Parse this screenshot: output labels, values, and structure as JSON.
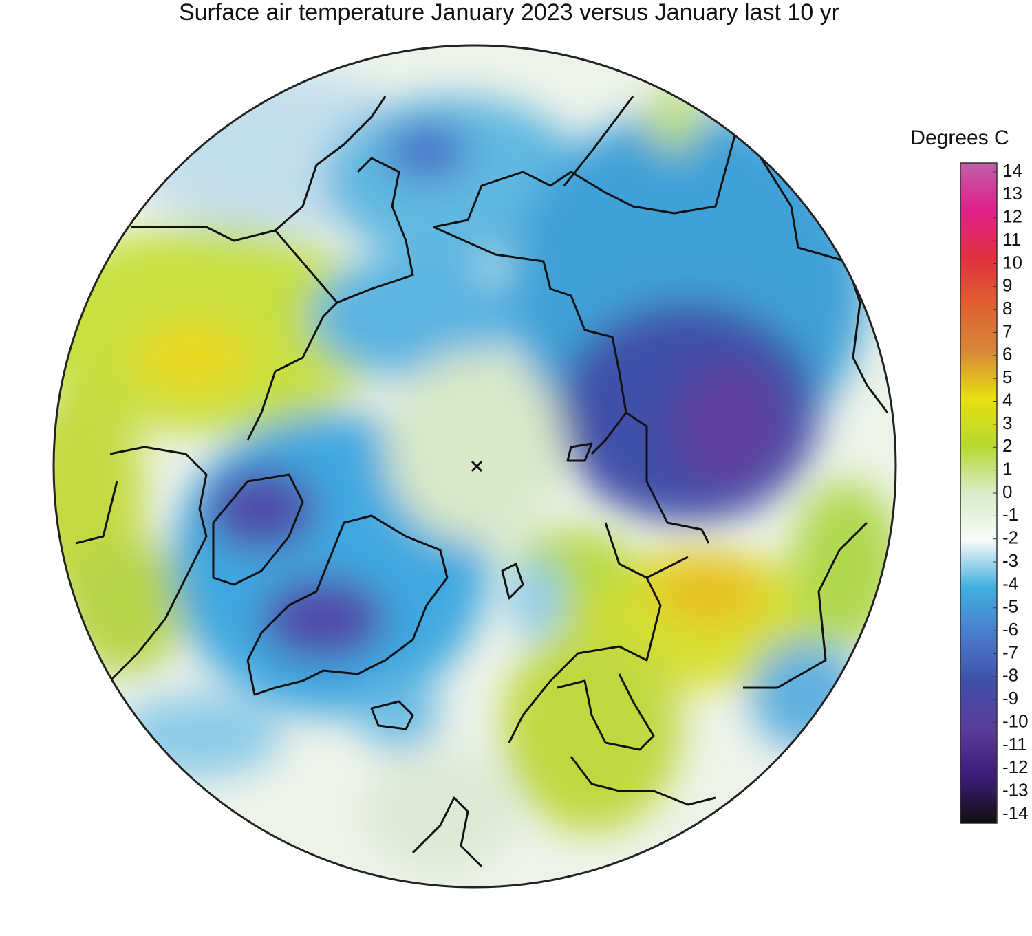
{
  "title": "Surface air temperature January 2023 versus January last 10 yr",
  "colorbar": {
    "label": "Degrees C",
    "lim": [
      -14,
      14
    ],
    "ticks": [
      14,
      13,
      12,
      11,
      10,
      9,
      8,
      7,
      6,
      5,
      4,
      3,
      2,
      1,
      0,
      -1,
      -2,
      -3,
      -4,
      -5,
      -6,
      -7,
      -8,
      -9,
      -10,
      -11,
      -12,
      -13,
      -14
    ],
    "colors": [
      "#c060a8",
      "#e0208a",
      "#e03040",
      "#e06030",
      "#d88838",
      "#e8e010",
      "#b8d830",
      "#d8ecc8",
      "#f8fbf8",
      "#40b0e0",
      "#4a7ccc",
      "#4050a8",
      "#5a3c9c",
      "#3c1c78",
      "#101010"
    ]
  }
}
